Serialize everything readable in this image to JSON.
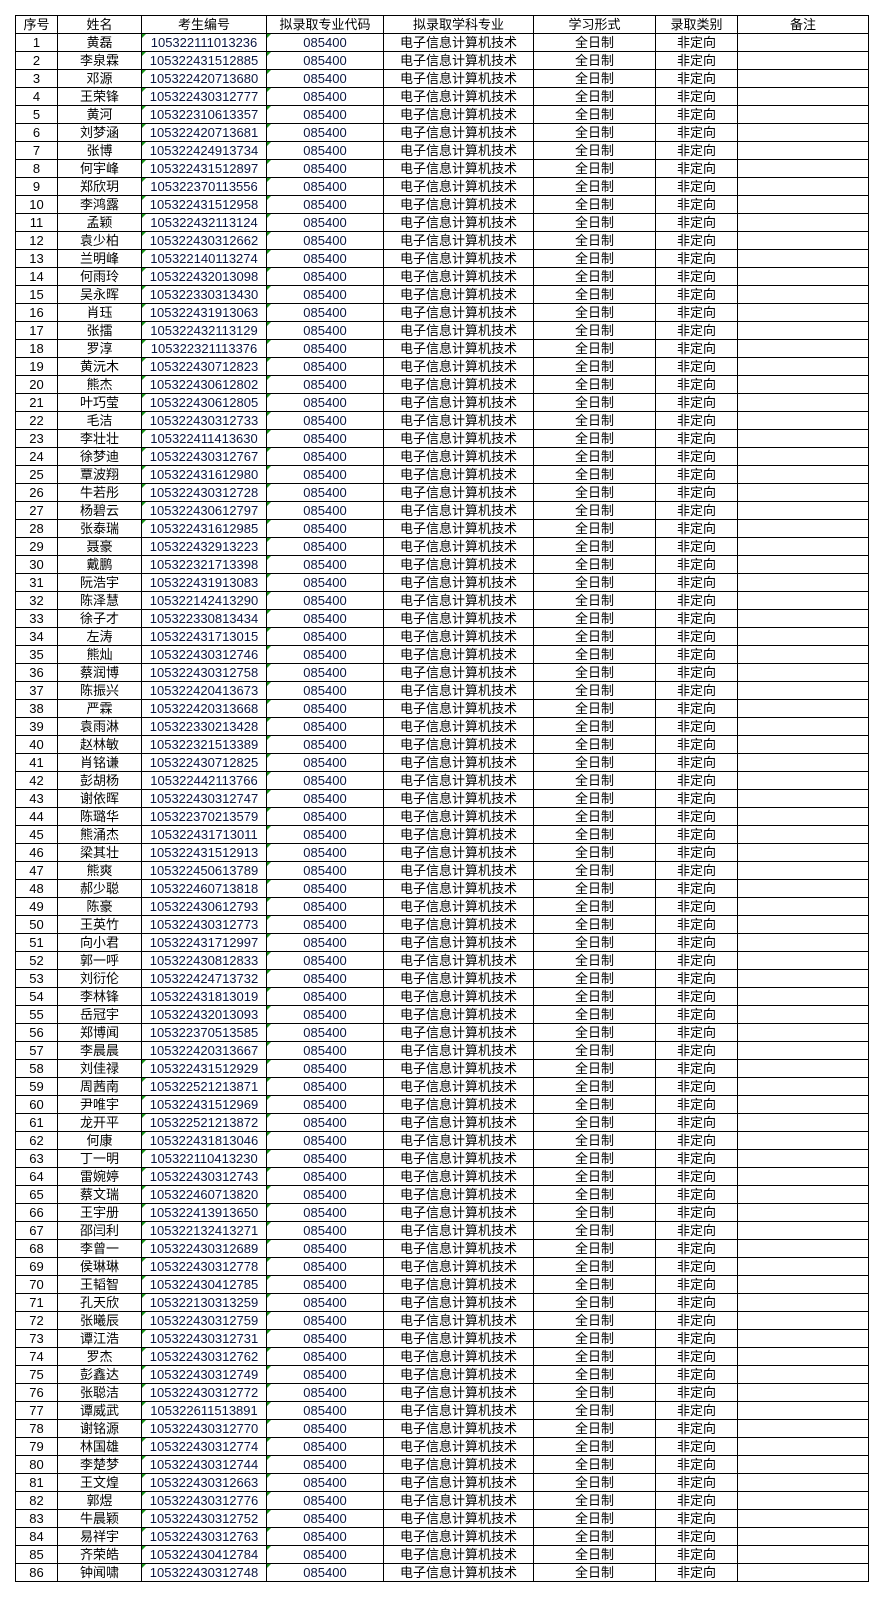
{
  "headers": [
    "序号",
    "姓名",
    "考生编号",
    "拟录取专业代码",
    "拟录取学科专业",
    "学习形式",
    "录取类别",
    "备注"
  ],
  "rows": [
    [
      "1",
      "黄磊",
      "105322111013236",
      "085400",
      "电子信息计算机技术",
      "全日制",
      "非定向",
      ""
    ],
    [
      "2",
      "李泉霖",
      "105322431512885",
      "085400",
      "电子信息计算机技术",
      "全日制",
      "非定向",
      ""
    ],
    [
      "3",
      "邓源",
      "105322420713680",
      "085400",
      "电子信息计算机技术",
      "全日制",
      "非定向",
      ""
    ],
    [
      "4",
      "王荣锋",
      "105322430312777",
      "085400",
      "电子信息计算机技术",
      "全日制",
      "非定向",
      ""
    ],
    [
      "5",
      "黄河",
      "105322310613357",
      "085400",
      "电子信息计算机技术",
      "全日制",
      "非定向",
      ""
    ],
    [
      "6",
      "刘梦涵",
      "105322420713681",
      "085400",
      "电子信息计算机技术",
      "全日制",
      "非定向",
      ""
    ],
    [
      "7",
      "张博",
      "105322424913734",
      "085400",
      "电子信息计算机技术",
      "全日制",
      "非定向",
      ""
    ],
    [
      "8",
      "何宇峰",
      "105322431512897",
      "085400",
      "电子信息计算机技术",
      "全日制",
      "非定向",
      ""
    ],
    [
      "9",
      "郑欣玥",
      "105322370113556",
      "085400",
      "电子信息计算机技术",
      "全日制",
      "非定向",
      ""
    ],
    [
      "10",
      "李鸿露",
      "105322431512958",
      "085400",
      "电子信息计算机技术",
      "全日制",
      "非定向",
      ""
    ],
    [
      "11",
      "孟颖",
      "105322432113124",
      "085400",
      "电子信息计算机技术",
      "全日制",
      "非定向",
      ""
    ],
    [
      "12",
      "袁少柏",
      "105322430312662",
      "085400",
      "电子信息计算机技术",
      "全日制",
      "非定向",
      ""
    ],
    [
      "13",
      "兰明峰",
      "105322140113274",
      "085400",
      "电子信息计算机技术",
      "全日制",
      "非定向",
      ""
    ],
    [
      "14",
      "何雨玲",
      "105322432013098",
      "085400",
      "电子信息计算机技术",
      "全日制",
      "非定向",
      ""
    ],
    [
      "15",
      "吴永晖",
      "105322330313430",
      "085400",
      "电子信息计算机技术",
      "全日制",
      "非定向",
      ""
    ],
    [
      "16",
      "肖珏",
      "105322431913063",
      "085400",
      "电子信息计算机技术",
      "全日制",
      "非定向",
      ""
    ],
    [
      "17",
      "张擂",
      "105322432113129",
      "085400",
      "电子信息计算机技术",
      "全日制",
      "非定向",
      ""
    ],
    [
      "18",
      "罗淳",
      "105322321113376",
      "085400",
      "电子信息计算机技术",
      "全日制",
      "非定向",
      ""
    ],
    [
      "19",
      "黄沅木",
      "105322430712823",
      "085400",
      "电子信息计算机技术",
      "全日制",
      "非定向",
      ""
    ],
    [
      "20",
      "熊杰",
      "105322430612802",
      "085400",
      "电子信息计算机技术",
      "全日制",
      "非定向",
      ""
    ],
    [
      "21",
      "叶巧莹",
      "105322430612805",
      "085400",
      "电子信息计算机技术",
      "全日制",
      "非定向",
      ""
    ],
    [
      "22",
      "毛洁",
      "105322430312733",
      "085400",
      "电子信息计算机技术",
      "全日制",
      "非定向",
      ""
    ],
    [
      "23",
      "李壮壮",
      "105322411413630",
      "085400",
      "电子信息计算机技术",
      "全日制",
      "非定向",
      ""
    ],
    [
      "24",
      "徐梦迪",
      "105322430312767",
      "085400",
      "电子信息计算机技术",
      "全日制",
      "非定向",
      ""
    ],
    [
      "25",
      "覃波翔",
      "105322431612980",
      "085400",
      "电子信息计算机技术",
      "全日制",
      "非定向",
      ""
    ],
    [
      "26",
      "牛若彤",
      "105322430312728",
      "085400",
      "电子信息计算机技术",
      "全日制",
      "非定向",
      ""
    ],
    [
      "27",
      "杨碧云",
      "105322430612797",
      "085400",
      "电子信息计算机技术",
      "全日制",
      "非定向",
      ""
    ],
    [
      "28",
      "张泰瑞",
      "105322431612985",
      "085400",
      "电子信息计算机技术",
      "全日制",
      "非定向",
      ""
    ],
    [
      "29",
      "聂豪",
      "105322432913223",
      "085400",
      "电子信息计算机技术",
      "全日制",
      "非定向",
      ""
    ],
    [
      "30",
      "戴鹏",
      "105322321713398",
      "085400",
      "电子信息计算机技术",
      "全日制",
      "非定向",
      ""
    ],
    [
      "31",
      "阮浩宇",
      "105322431913083",
      "085400",
      "电子信息计算机技术",
      "全日制",
      "非定向",
      ""
    ],
    [
      "32",
      "陈泽慧",
      "105322142413290",
      "085400",
      "电子信息计算机技术",
      "全日制",
      "非定向",
      ""
    ],
    [
      "33",
      "徐子才",
      "105322330813434",
      "085400",
      "电子信息计算机技术",
      "全日制",
      "非定向",
      ""
    ],
    [
      "34",
      "左涛",
      "105322431713015",
      "085400",
      "电子信息计算机技术",
      "全日制",
      "非定向",
      ""
    ],
    [
      "35",
      "熊灿",
      "105322430312746",
      "085400",
      "电子信息计算机技术",
      "全日制",
      "非定向",
      ""
    ],
    [
      "36",
      "蔡润博",
      "105322430312758",
      "085400",
      "电子信息计算机技术",
      "全日制",
      "非定向",
      ""
    ],
    [
      "37",
      "陈振兴",
      "105322420413673",
      "085400",
      "电子信息计算机技术",
      "全日制",
      "非定向",
      ""
    ],
    [
      "38",
      "严霖",
      "105322420313668",
      "085400",
      "电子信息计算机技术",
      "全日制",
      "非定向",
      ""
    ],
    [
      "39",
      "袁雨淋",
      "105322330213428",
      "085400",
      "电子信息计算机技术",
      "全日制",
      "非定向",
      ""
    ],
    [
      "40",
      "赵林敏",
      "105322321513389",
      "085400",
      "电子信息计算机技术",
      "全日制",
      "非定向",
      ""
    ],
    [
      "41",
      "肖铭谦",
      "105322430712825",
      "085400",
      "电子信息计算机技术",
      "全日制",
      "非定向",
      ""
    ],
    [
      "42",
      "彭胡杨",
      "105322442113766",
      "085400",
      "电子信息计算机技术",
      "全日制",
      "非定向",
      ""
    ],
    [
      "43",
      "谢依晖",
      "105322430312747",
      "085400",
      "电子信息计算机技术",
      "全日制",
      "非定向",
      ""
    ],
    [
      "44",
      "陈璐华",
      "105322370213579",
      "085400",
      "电子信息计算机技术",
      "全日制",
      "非定向",
      ""
    ],
    [
      "45",
      "熊涌杰",
      "105322431713011",
      "085400",
      "电子信息计算机技术",
      "全日制",
      "非定向",
      ""
    ],
    [
      "46",
      "梁其壮",
      "105322431512913",
      "085400",
      "电子信息计算机技术",
      "全日制",
      "非定向",
      ""
    ],
    [
      "47",
      "熊爽",
      "105322450613789",
      "085400",
      "电子信息计算机技术",
      "全日制",
      "非定向",
      ""
    ],
    [
      "48",
      "郝少聪",
      "105322460713818",
      "085400",
      "电子信息计算机技术",
      "全日制",
      "非定向",
      ""
    ],
    [
      "49",
      "陈豪",
      "105322430612793",
      "085400",
      "电子信息计算机技术",
      "全日制",
      "非定向",
      ""
    ],
    [
      "50",
      "王英竹",
      "105322430312773",
      "085400",
      "电子信息计算机技术",
      "全日制",
      "非定向",
      ""
    ],
    [
      "51",
      "向小君",
      "105322431712997",
      "085400",
      "电子信息计算机技术",
      "全日制",
      "非定向",
      ""
    ],
    [
      "52",
      "郭一呼",
      "105322430812833",
      "085400",
      "电子信息计算机技术",
      "全日制",
      "非定向",
      ""
    ],
    [
      "53",
      "刘衍伦",
      "105322424713732",
      "085400",
      "电子信息计算机技术",
      "全日制",
      "非定向",
      ""
    ],
    [
      "54",
      "李林锋",
      "105322431813019",
      "085400",
      "电子信息计算机技术",
      "全日制",
      "非定向",
      ""
    ],
    [
      "55",
      "岳冠宇",
      "105322432013093",
      "085400",
      "电子信息计算机技术",
      "全日制",
      "非定向",
      ""
    ],
    [
      "56",
      "郑博闻",
      "105322370513585",
      "085400",
      "电子信息计算机技术",
      "全日制",
      "非定向",
      ""
    ],
    [
      "57",
      "李晨晨",
      "105322420313667",
      "085400",
      "电子信息计算机技术",
      "全日制",
      "非定向",
      ""
    ],
    [
      "58",
      "刘佳禄",
      "105322431512929",
      "085400",
      "电子信息计算机技术",
      "全日制",
      "非定向",
      ""
    ],
    [
      "59",
      "周茜南",
      "105322521213871",
      "085400",
      "电子信息计算机技术",
      "全日制",
      "非定向",
      ""
    ],
    [
      "60",
      "尹唯宇",
      "105322431512969",
      "085400",
      "电子信息计算机技术",
      "全日制",
      "非定向",
      ""
    ],
    [
      "61",
      "龙开平",
      "105322521213872",
      "085400",
      "电子信息计算机技术",
      "全日制",
      "非定向",
      ""
    ],
    [
      "62",
      "何康",
      "105322431813046",
      "085400",
      "电子信息计算机技术",
      "全日制",
      "非定向",
      ""
    ],
    [
      "63",
      "丁一明",
      "105322110413230",
      "085400",
      "电子信息计算机技术",
      "全日制",
      "非定向",
      ""
    ],
    [
      "64",
      "雷婉婷",
      "105322430312743",
      "085400",
      "电子信息计算机技术",
      "全日制",
      "非定向",
      ""
    ],
    [
      "65",
      "蔡文瑞",
      "105322460713820",
      "085400",
      "电子信息计算机技术",
      "全日制",
      "非定向",
      ""
    ],
    [
      "66",
      "王宇册",
      "105322413913650",
      "085400",
      "电子信息计算机技术",
      "全日制",
      "非定向",
      ""
    ],
    [
      "67",
      "邵闫利",
      "105322132413271",
      "085400",
      "电子信息计算机技术",
      "全日制",
      "非定向",
      ""
    ],
    [
      "68",
      "李曾一",
      "105322430312689",
      "085400",
      "电子信息计算机技术",
      "全日制",
      "非定向",
      ""
    ],
    [
      "69",
      "侯琳琳",
      "105322430312778",
      "085400",
      "电子信息计算机技术",
      "全日制",
      "非定向",
      ""
    ],
    [
      "70",
      "王韬智",
      "105322430412785",
      "085400",
      "电子信息计算机技术",
      "全日制",
      "非定向",
      ""
    ],
    [
      "71",
      "孔天欣",
      "105322130313259",
      "085400",
      "电子信息计算机技术",
      "全日制",
      "非定向",
      ""
    ],
    [
      "72",
      "张曦辰",
      "105322430312759",
      "085400",
      "电子信息计算机技术",
      "全日制",
      "非定向",
      ""
    ],
    [
      "73",
      "谭江浩",
      "105322430312731",
      "085400",
      "电子信息计算机技术",
      "全日制",
      "非定向",
      ""
    ],
    [
      "74",
      "罗杰",
      "105322430312762",
      "085400",
      "电子信息计算机技术",
      "全日制",
      "非定向",
      ""
    ],
    [
      "75",
      "彭鑫达",
      "105322430312749",
      "085400",
      "电子信息计算机技术",
      "全日制",
      "非定向",
      ""
    ],
    [
      "76",
      "张聪洁",
      "105322430312772",
      "085400",
      "电子信息计算机技术",
      "全日制",
      "非定向",
      ""
    ],
    [
      "77",
      "谭威武",
      "105322611513891",
      "085400",
      "电子信息计算机技术",
      "全日制",
      "非定向",
      ""
    ],
    [
      "78",
      "谢铭源",
      "105322430312770",
      "085400",
      "电子信息计算机技术",
      "全日制",
      "非定向",
      ""
    ],
    [
      "79",
      "林国雄",
      "105322430312774",
      "085400",
      "电子信息计算机技术",
      "全日制",
      "非定向",
      ""
    ],
    [
      "80",
      "李楚梦",
      "105322430312744",
      "085400",
      "电子信息计算机技术",
      "全日制",
      "非定向",
      ""
    ],
    [
      "81",
      "王文煌",
      "105322430312663",
      "085400",
      "电子信息计算机技术",
      "全日制",
      "非定向",
      ""
    ],
    [
      "82",
      "郭煜",
      "105322430312776",
      "085400",
      "电子信息计算机技术",
      "全日制",
      "非定向",
      ""
    ],
    [
      "83",
      "牛晨颖",
      "105322430312752",
      "085400",
      "电子信息计算机技术",
      "全日制",
      "非定向",
      ""
    ],
    [
      "84",
      "易祥宇",
      "105322430312763",
      "085400",
      "电子信息计算机技术",
      "全日制",
      "非定向",
      ""
    ],
    [
      "85",
      "齐荣皓",
      "105322430412784",
      "085400",
      "电子信息计算机技术",
      "全日制",
      "非定向",
      ""
    ],
    [
      "86",
      "钟闻啸",
      "105322430312748",
      "085400",
      "电子信息计算机技术",
      "全日制",
      "非定向",
      ""
    ]
  ]
}
